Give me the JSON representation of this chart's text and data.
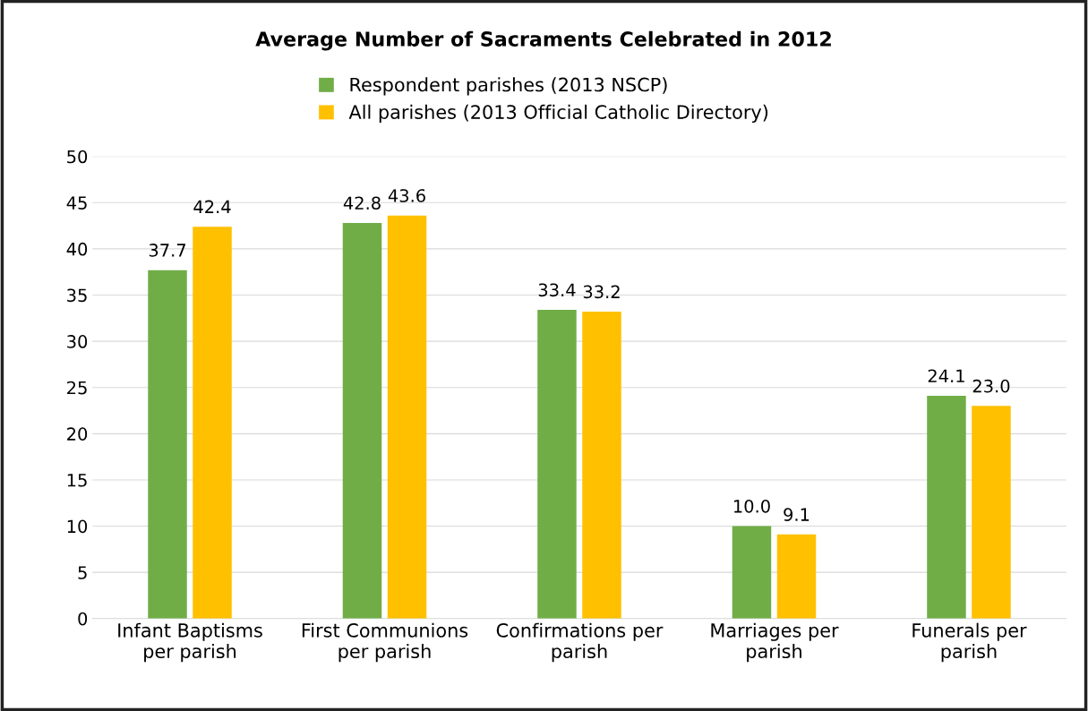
{
  "chart_data": {
    "type": "bar",
    "title": "Average Number of Sacraments Celebrated in 2012",
    "categories": [
      "Infant Baptisms per parish",
      "First Communions per parish",
      "Confirmations per parish",
      "Marriages per parish",
      "Funerals per parish"
    ],
    "series": [
      {
        "name": "Respondent parishes (2013 NSCP)",
        "color": "#70ad47",
        "values": [
          37.7,
          42.8,
          33.4,
          10.0,
          24.1
        ],
        "value_labels": [
          "37.7",
          "42.8",
          "33.4",
          "10.0",
          "24.1"
        ]
      },
      {
        "name": "All parishes (2013 Official Catholic Directory)",
        "color": "#ffc000",
        "values": [
          42.4,
          43.6,
          33.2,
          9.1,
          23.0
        ],
        "value_labels": [
          "42.4",
          "43.6",
          "33.2",
          "9.1",
          "23.0"
        ]
      }
    ],
    "ylim": [
      0,
      50
    ],
    "yticks": [
      0,
      5,
      10,
      15,
      20,
      25,
      30,
      35,
      40,
      45,
      50
    ],
    "grid": "y",
    "legend": "top"
  }
}
